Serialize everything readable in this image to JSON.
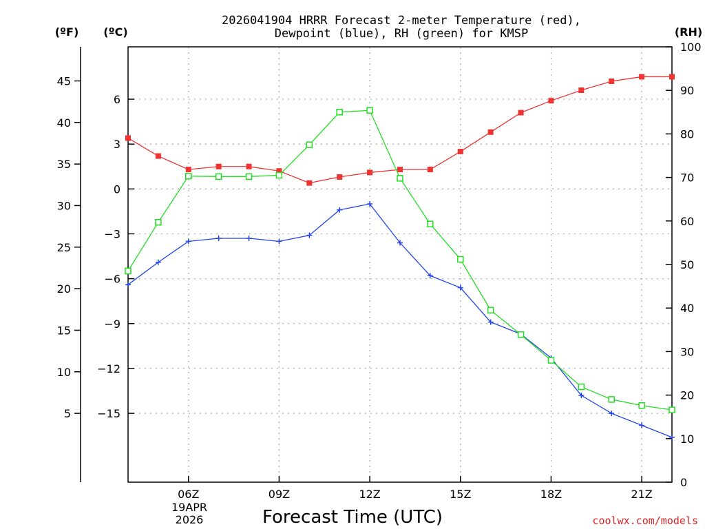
{
  "chart_data": {
    "type": "line",
    "title_line1": "2026041904 HRRR Forecast 2-meter Temperature (red),",
    "title_line2": "Dewpoint (blue), RH (green) for KMSP",
    "xlabel": "Forecast Time (UTC)",
    "credit": "coolwx.com/models",
    "unit_f": "(ºF)",
    "unit_c": "(ºC)",
    "unit_rh": "(RH)",
    "date_line1": "19APR",
    "date_line2": "2026",
    "x_hours": [
      4,
      5,
      6,
      7,
      8,
      9,
      10,
      11,
      12,
      13,
      14,
      15,
      16,
      17,
      18,
      19,
      20,
      21,
      22
    ],
    "x_range": [
      4,
      22
    ],
    "x_ticks": [
      {
        "hour": 6,
        "label": "06Z"
      },
      {
        "hour": 9,
        "label": "09Z"
      },
      {
        "hour": 12,
        "label": "12Z"
      },
      {
        "hour": 15,
        "label": "15Z"
      },
      {
        "hour": 18,
        "label": "18Z"
      },
      {
        "hour": 21,
        "label": "21Z"
      }
    ],
    "celsius_range": [
      -19.6,
      9.5
    ],
    "celsius_ticks": [
      6,
      3,
      0,
      -3,
      -6,
      -9,
      -12,
      -15
    ],
    "celsius_tick_labels": [
      "6",
      "3",
      "0",
      "−3",
      "−6",
      "−9",
      "−12",
      "−15"
    ],
    "fahrenheit_ticks": [
      45,
      40,
      35,
      30,
      25,
      20,
      15,
      10,
      5
    ],
    "fahrenheit_tick_labels": [
      "45",
      "40",
      "35",
      "30",
      "25",
      "20",
      "15",
      "10",
      "5"
    ],
    "rh_range": [
      0,
      100
    ],
    "rh_ticks": [
      100,
      90,
      80,
      70,
      60,
      50,
      40,
      30,
      20,
      10,
      0
    ],
    "rh_tick_labels": [
      "100",
      "90",
      "80",
      "70",
      "60",
      "50",
      "40",
      "30",
      "20",
      "10",
      "0"
    ],
    "series": [
      {
        "name": "Temperature",
        "axis": "celsius",
        "color": "#ee3333",
        "marker": "filled-square",
        "values": [
          3.4,
          2.2,
          1.3,
          1.5,
          1.5,
          1.2,
          0.4,
          0.8,
          1.1,
          1.3,
          1.3,
          2.5,
          3.8,
          5.1,
          5.9,
          6.6,
          7.2,
          7.5,
          7.5
        ]
      },
      {
        "name": "Dewpoint",
        "axis": "celsius",
        "color": "#2244ee",
        "marker": "plus",
        "values": [
          -6.4,
          -4.9,
          -3.5,
          -3.3,
          -3.3,
          -3.5,
          -3.1,
          -1.4,
          -1.0,
          -3.6,
          -5.8,
          -6.6,
          -8.9,
          -9.7,
          -11.3,
          -13.8,
          -15.0,
          -15.8,
          -16.6
        ]
      },
      {
        "name": "RH",
        "axis": "rh",
        "color": "#22dd22",
        "marker": "open-square",
        "values": [
          48.5,
          59.7,
          70.3,
          70.2,
          70.2,
          70.5,
          77.5,
          85.0,
          85.4,
          69.8,
          59.3,
          51.2,
          39.5,
          33.9,
          28.0,
          21.9,
          19.0,
          17.6,
          16.6
        ]
      }
    ]
  }
}
